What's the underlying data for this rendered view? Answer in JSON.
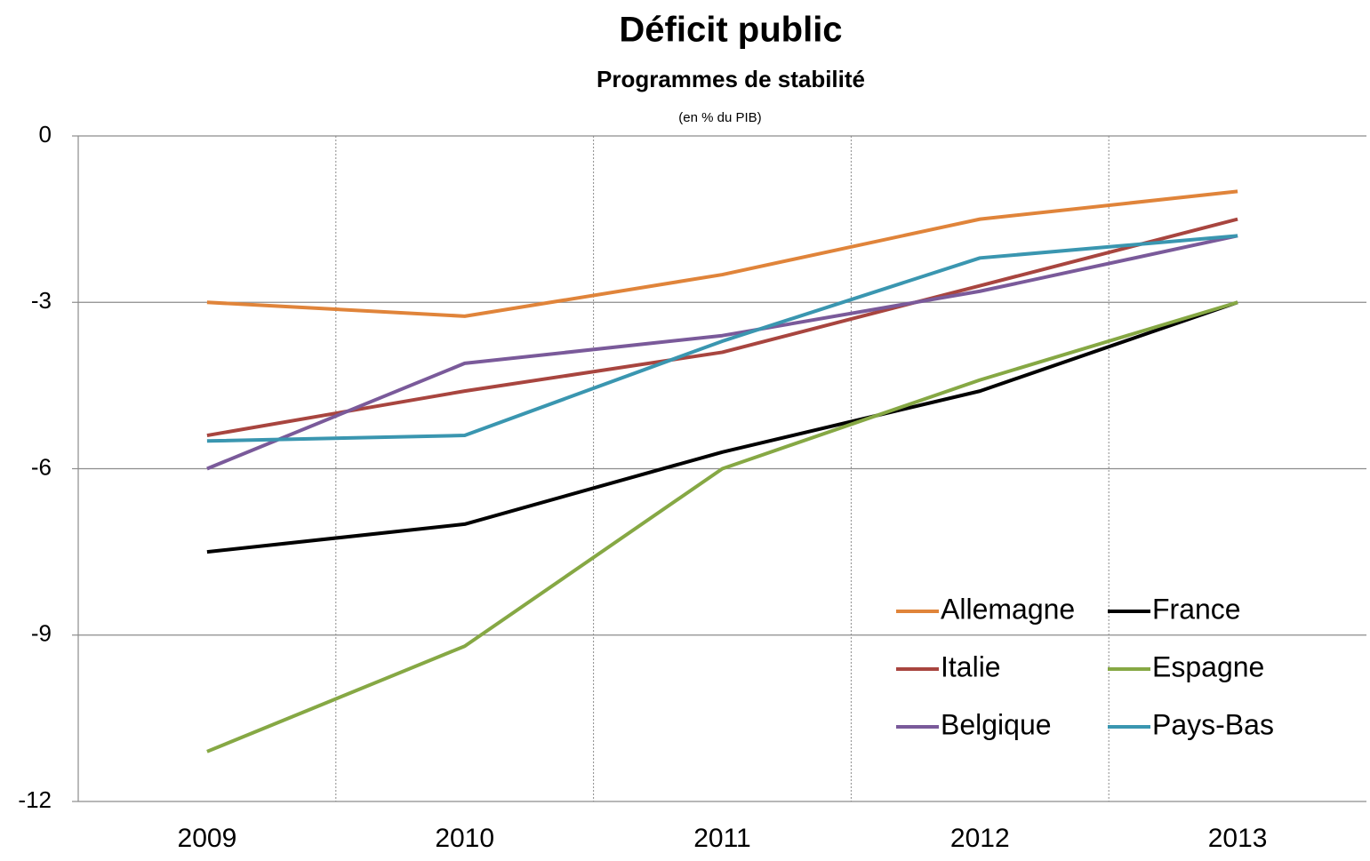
{
  "chart_data": {
    "type": "line",
    "title": "Déficit public",
    "subtitle": "Programmes de stabilité",
    "note": "(en % du PIB)",
    "categories": [
      "2009",
      "2010",
      "2011",
      "2012",
      "2013"
    ],
    "series": [
      {
        "name": "Allemagne",
        "color": "#e0843a",
        "values": [
          -3,
          -3.25,
          -2.5,
          -1.5,
          -1
        ]
      },
      {
        "name": "France",
        "color": "#000000",
        "values": [
          -7.5,
          -7,
          -5.7,
          -4.6,
          -3
        ]
      },
      {
        "name": "Italie",
        "color": "#a8453f",
        "values": [
          -5.4,
          -4.6,
          -3.9,
          -2.7,
          -1.5
        ]
      },
      {
        "name": "Espagne",
        "color": "#86a844",
        "values": [
          -11.1,
          -9.2,
          -6,
          -4.4,
          -3
        ]
      },
      {
        "name": "Belgique",
        "color": "#7a5a9a",
        "values": [
          -6,
          -4.1,
          -3.6,
          -2.8,
          -1.8
        ]
      },
      {
        "name": "Pays-Bas",
        "color": "#3a96b0",
        "values": [
          -5.5,
          -5.4,
          -3.7,
          -2.2,
          -1.8
        ]
      }
    ],
    "ylim": [
      -12,
      0
    ],
    "yticks": [
      0,
      -3,
      -6,
      -9,
      -12
    ],
    "grid": true,
    "legend": "lower right"
  }
}
